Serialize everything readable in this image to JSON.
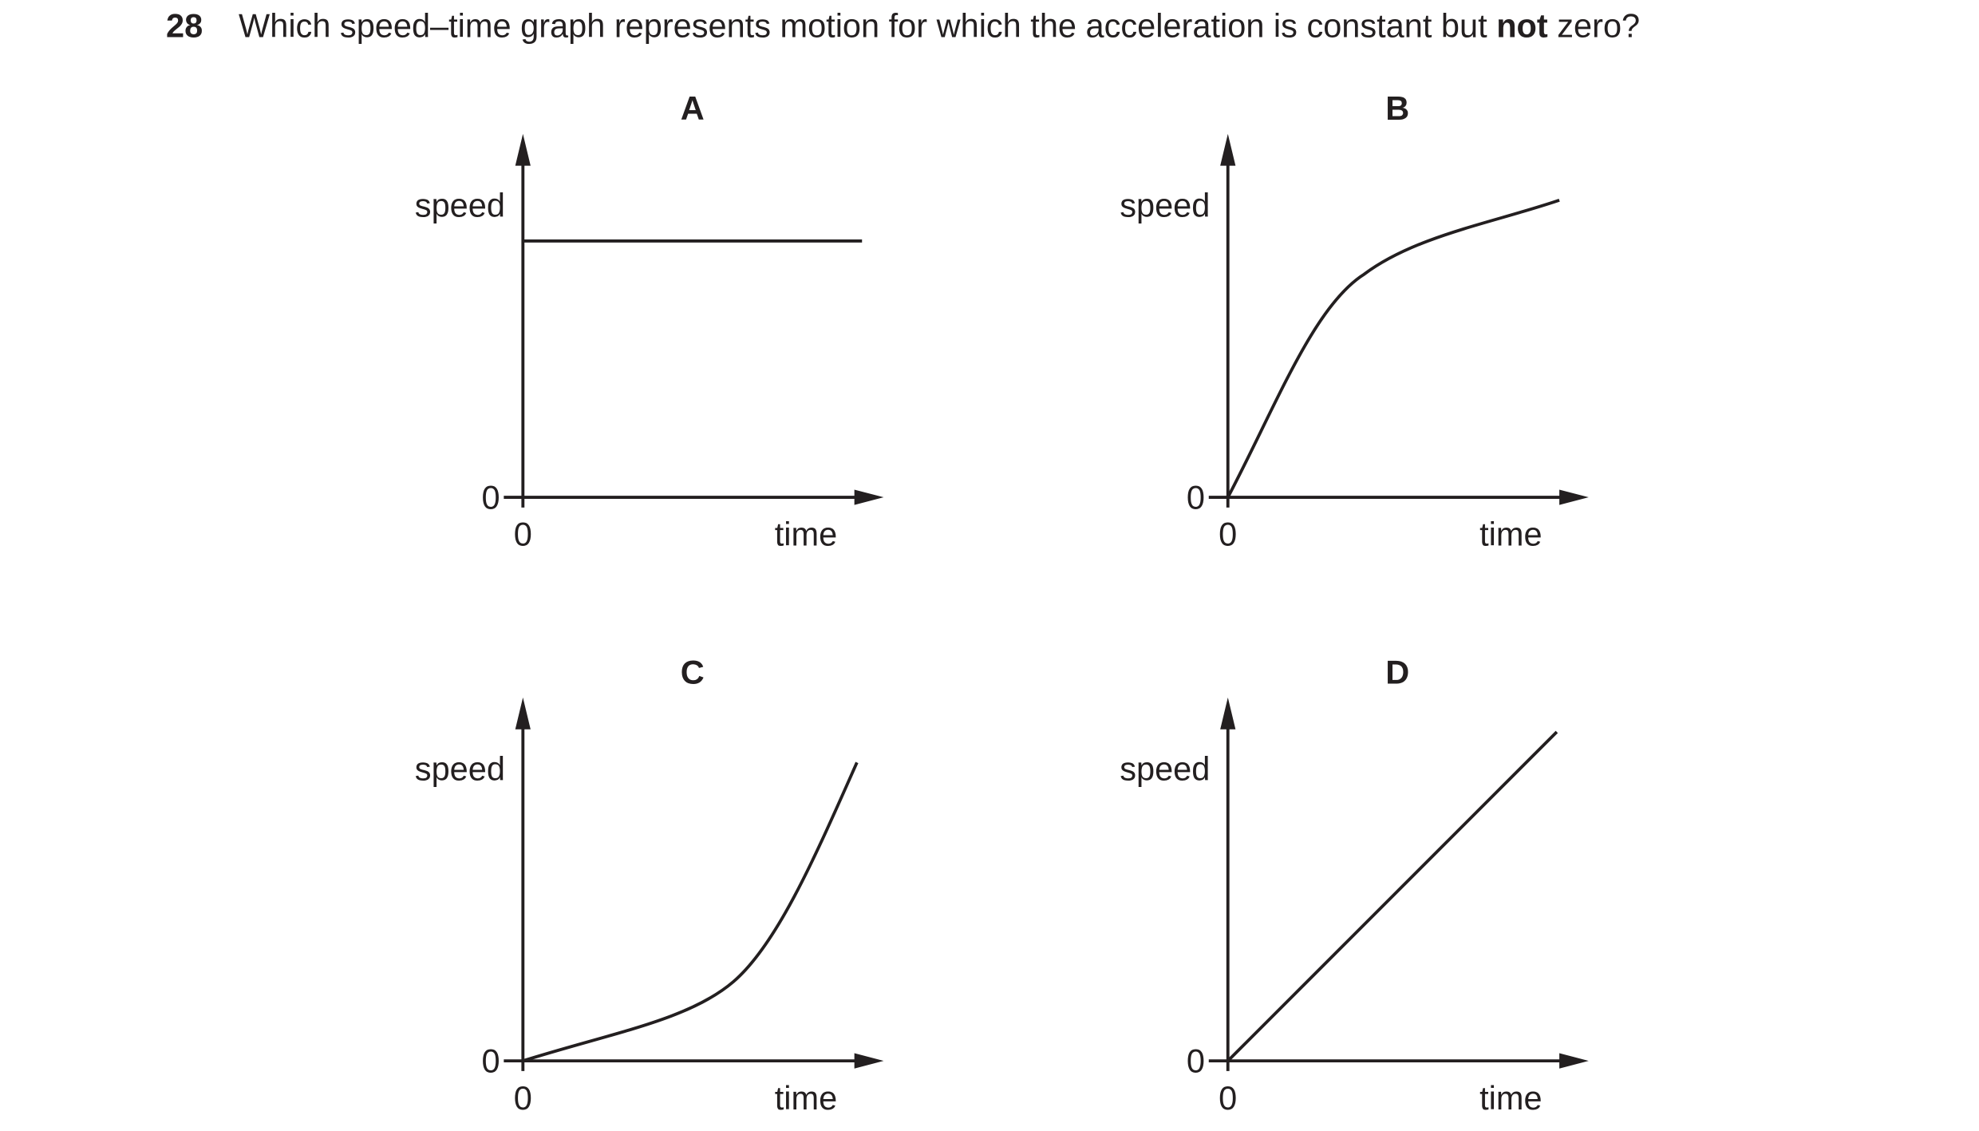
{
  "question": {
    "number": "28",
    "text_before": "Which speed–time graph represents motion for which the acceleration is constant but",
    "emphasis": "not",
    "text_after": "zero?"
  },
  "options": [
    {
      "label": "A",
      "y_axis_label": "speed",
      "x_axis_label": "time",
      "y_origin": "0",
      "x_origin": "0"
    },
    {
      "label": "B",
      "y_axis_label": "speed",
      "x_axis_label": "time",
      "y_origin": "0",
      "x_origin": "0"
    },
    {
      "label": "C",
      "y_axis_label": "speed",
      "x_axis_label": "time",
      "y_origin": "0",
      "x_origin": "0"
    },
    {
      "label": "D",
      "y_axis_label": "speed",
      "x_axis_label": "time",
      "y_origin": "0",
      "x_origin": "0"
    }
  ]
}
